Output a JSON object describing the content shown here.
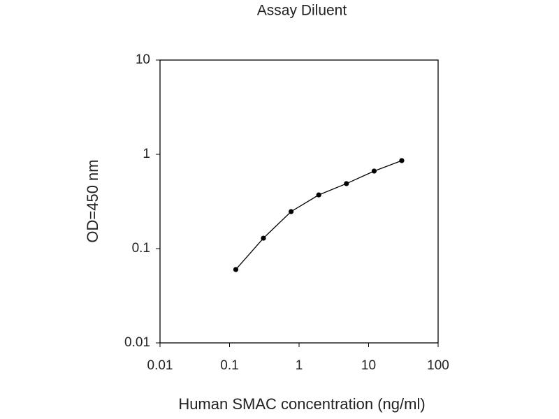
{
  "chart_data": {
    "type": "line",
    "title": "Assay Diluent",
    "x_label": "Human SMAC concentration (ng/ml)",
    "y_label": "OD=450 nm",
    "x": [
      0.123,
      0.307,
      0.768,
      1.92,
      4.8,
      12,
      30
    ],
    "series": [
      {
        "color": "#000000",
        "values": [
          0.06,
          0.129,
          0.247,
          0.371,
          0.489,
          0.664,
          0.858
        ]
      }
    ],
    "xscale": "log",
    "yscale": "log",
    "xlim": [
      0.01,
      100
    ],
    "ylim": [
      0.01,
      10
    ],
    "xticks": [
      0.01,
      0.1,
      1,
      10,
      100
    ],
    "yticks": [
      0.01,
      0.1,
      1,
      10
    ],
    "grid": false
  }
}
